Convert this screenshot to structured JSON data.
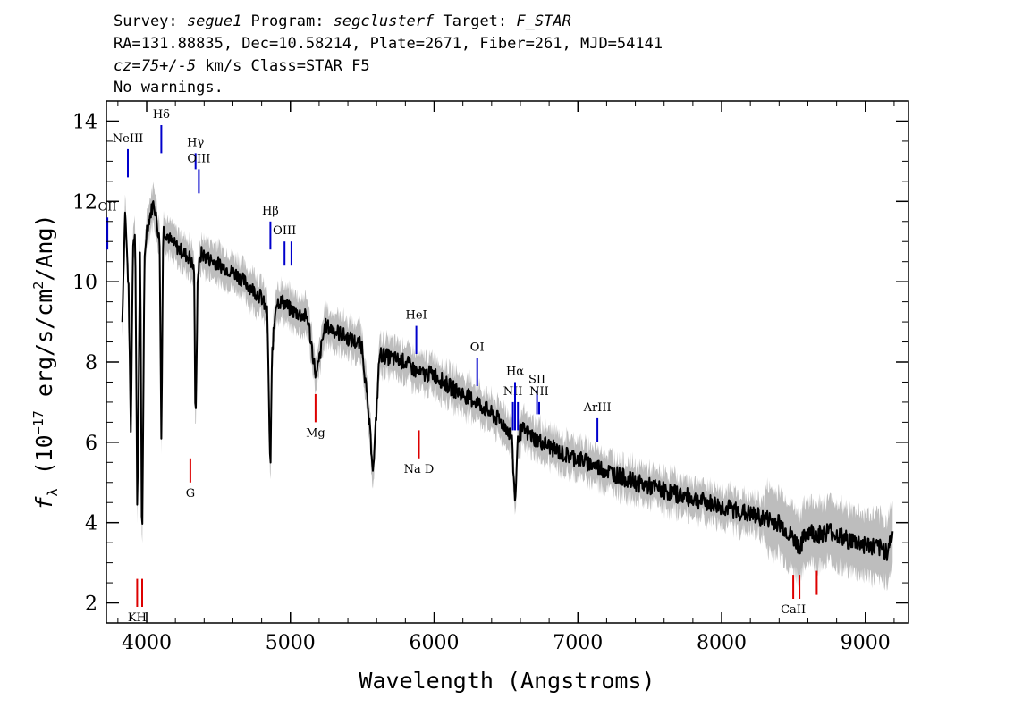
{
  "header": {
    "line1": {
      "survey_label": "Survey: ",
      "survey": "segue1",
      "program_label": " Program: ",
      "program": "segclusterf",
      "target_label": " Target: ",
      "target": "F_STAR"
    },
    "line2": "RA=131.88835, Dec=10.58214, Plate=2671, Fiber=261, MJD=54141",
    "line3": {
      "cz": "cz=75+/-5",
      "rest": " km/s Class=STAR F5"
    },
    "line4": "No warnings."
  },
  "chart_data": {
    "type": "line",
    "xlabel": "Wavelength (Angstroms)",
    "ylabel": {
      "symbol": "f",
      "subscript": "λ",
      "units": " (10",
      "exp": "−17",
      "units2": " erg/s/cm",
      "exp2": "2",
      "units3": "/Ang)"
    },
    "xlim": [
      3720,
      9300
    ],
    "ylim": [
      1.5,
      14.5
    ],
    "xticks": [
      4000,
      5000,
      6000,
      7000,
      8000,
      9000
    ],
    "yticks": [
      2,
      4,
      6,
      8,
      10,
      12,
      14
    ],
    "grid": false,
    "colors": {
      "flux": "#000000",
      "noise": "#bdbdbd",
      "emission": "#0000cc",
      "absorption": "#dd0000"
    },
    "series": [
      {
        "role": "flux",
        "x": [
          3830,
          3850,
          3875,
          3890,
          3905,
          3920,
          3935,
          3955,
          3968,
          3985,
          4000,
          4020,
          4050,
          4070,
          4090,
          4102,
          4115,
          4140,
          4170,
          4200,
          4230,
          4260,
          4300,
          4330,
          4340,
          4355,
          4380,
          4420,
          4470,
          4520,
          4570,
          4620,
          4680,
          4740,
          4800,
          4840,
          4850,
          4861,
          4872,
          4900,
          4950,
          5000,
          5060,
          5120,
          5180,
          5240,
          5300,
          5400,
          5500,
          5577,
          5620,
          5700,
          5800,
          5895,
          6000,
          6100,
          6200,
          6300,
          6400,
          6500,
          6540,
          6563,
          6585,
          6620,
          6700,
          6800,
          6900,
          7000,
          7200,
          7400,
          7600,
          7800,
          8000,
          8200,
          8400,
          8498,
          8542,
          8600,
          8662,
          8750,
          8850,
          8950,
          9050,
          9150,
          9190
        ],
        "y": [
          9.0,
          11.8,
          9.7,
          6.2,
          11.0,
          11.3,
          4.1,
          11.1,
          3.0,
          10.5,
          11.3,
          11.6,
          12.0,
          11.5,
          11.0,
          6.1,
          11.3,
          11.2,
          11.0,
          10.9,
          10.8,
          10.7,
          10.6,
          10.3,
          6.2,
          10.2,
          10.7,
          10.6,
          10.5,
          10.4,
          10.3,
          10.2,
          10.0,
          9.8,
          9.6,
          9.2,
          7.0,
          5.2,
          8.2,
          9.5,
          9.5,
          9.3,
          9.2,
          9.1,
          7.6,
          8.9,
          8.8,
          8.6,
          8.4,
          5.3,
          8.2,
          8.1,
          8.0,
          7.7,
          7.7,
          7.4,
          7.2,
          7.0,
          6.7,
          6.4,
          6.1,
          4.5,
          6.2,
          6.3,
          6.1,
          5.9,
          5.7,
          5.6,
          5.3,
          5.0,
          4.8,
          4.6,
          4.4,
          4.2,
          4.0,
          3.6,
          3.4,
          3.8,
          3.7,
          3.8,
          3.6,
          3.5,
          3.4,
          3.3,
          3.7
        ]
      }
    ],
    "emission_lines": [
      {
        "label": "OII",
        "x": 3727,
        "y0": 11.6,
        "y1": 10.8
      },
      {
        "label": "NeIII",
        "x": 3869,
        "y0": 13.3,
        "y1": 12.6
      },
      {
        "label": "Hδ",
        "x": 4102,
        "y0": 13.9,
        "y1": 13.2
      },
      {
        "label": "Hγ",
        "x": 4340,
        "y0": 13.2,
        "y1": 12.8
      },
      {
        "label": "OIII",
        "x": 4363,
        "y0": 12.8,
        "y1": 12.2
      },
      {
        "label": "Hβ",
        "x": 4861,
        "y0": 11.5,
        "y1": 10.8
      },
      {
        "label": "OIII",
        "x": 4959,
        "y0": 11.0,
        "y1": 10.4
      },
      {
        "label": "",
        "x": 5007,
        "y0": 11.0,
        "y1": 10.4
      },
      {
        "label": "HeI",
        "x": 5876,
        "y0": 8.9,
        "y1": 8.2
      },
      {
        "label": "OI",
        "x": 6300,
        "y0": 8.1,
        "y1": 7.4
      },
      {
        "label": "NII",
        "x": 6548,
        "y0": 7.0,
        "y1": 6.3
      },
      {
        "label": "Hα",
        "x": 6563,
        "y0": 7.5,
        "y1": 6.3
      },
      {
        "label": "",
        "x": 6583,
        "y0": 7.0,
        "y1": 6.3
      },
      {
        "label": "SII",
        "x": 6716,
        "y0": 7.3,
        "y1": 6.7
      },
      {
        "label": "NII",
        "x": 6731,
        "y0": 7.0,
        "y1": 6.7
      },
      {
        "label": "ArIII",
        "x": 7136,
        "y0": 6.6,
        "y1": 6.0
      }
    ],
    "absorption_lines": [
      {
        "label": "KH",
        "x": 3934,
        "y0": 2.6,
        "y1": 1.9
      },
      {
        "label": "",
        "x": 3969,
        "y0": 2.6,
        "y1": 1.9
      },
      {
        "label": "G",
        "x": 4304,
        "y0": 5.6,
        "y1": 5.0
      },
      {
        "label": "Mg",
        "x": 5175,
        "y0": 7.2,
        "y1": 6.5
      },
      {
        "label": "Na D",
        "x": 5894,
        "y0": 6.3,
        "y1": 5.6
      },
      {
        "label": "CaII",
        "x": 8498,
        "y0": 2.7,
        "y1": 2.1
      },
      {
        "label": "",
        "x": 8542,
        "y0": 2.7,
        "y1": 2.1
      },
      {
        "label": "",
        "x": 8662,
        "y0": 2.8,
        "y1": 2.2
      }
    ]
  }
}
